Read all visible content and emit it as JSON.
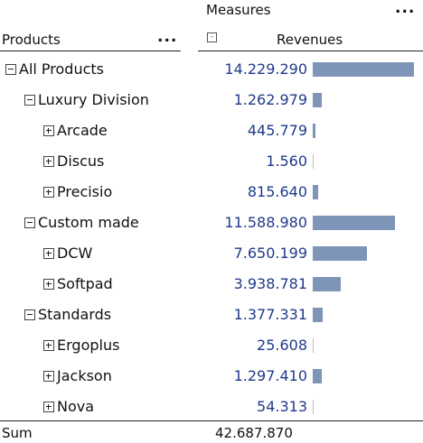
{
  "header": {
    "measures_label": "Measures",
    "menu_dots": "...",
    "products_label": "Products",
    "revenues_label": "Revenues",
    "collapse_glyph": "-"
  },
  "rows": [
    {
      "label": "All Products",
      "value": "14.229.290",
      "toggle": "minus",
      "fraction": 1.0
    },
    {
      "label": "Luxury Division",
      "value": "1.262.979",
      "toggle": "minus",
      "fraction": 0.089
    },
    {
      "label": "Arcade",
      "value": "445.779",
      "toggle": "plus",
      "fraction": 0.031
    },
    {
      "label": "Discus",
      "value": "1.560",
      "toggle": "plus",
      "fraction": 0.0001
    },
    {
      "label": "Precisio",
      "value": "815.640",
      "toggle": "plus",
      "fraction": 0.057
    },
    {
      "label": "Custom made",
      "value": "11.588.980",
      "toggle": "minus",
      "fraction": 0.814
    },
    {
      "label": "DCW",
      "value": "7.650.199",
      "toggle": "plus",
      "fraction": 0.538
    },
    {
      "label": "Softpad",
      "value": "3.938.781",
      "toggle": "plus",
      "fraction": 0.277
    },
    {
      "label": "Standards",
      "value": "1.377.331",
      "toggle": "minus",
      "fraction": 0.097
    },
    {
      "label": "Ergoplus",
      "value": "25.608",
      "toggle": "plus",
      "fraction": 0.0018
    },
    {
      "label": "Jackson",
      "value": "1.297.410",
      "toggle": "plus",
      "fraction": 0.091
    },
    {
      "label": "Nova",
      "value": "54.313",
      "toggle": "plus",
      "fraction": 0.0038
    }
  ],
  "footer": {
    "sum_label": "Sum",
    "sum_value": "42.687.870"
  },
  "colors": {
    "bar": "#7f95b8",
    "value_text": "#1f3a8a"
  }
}
